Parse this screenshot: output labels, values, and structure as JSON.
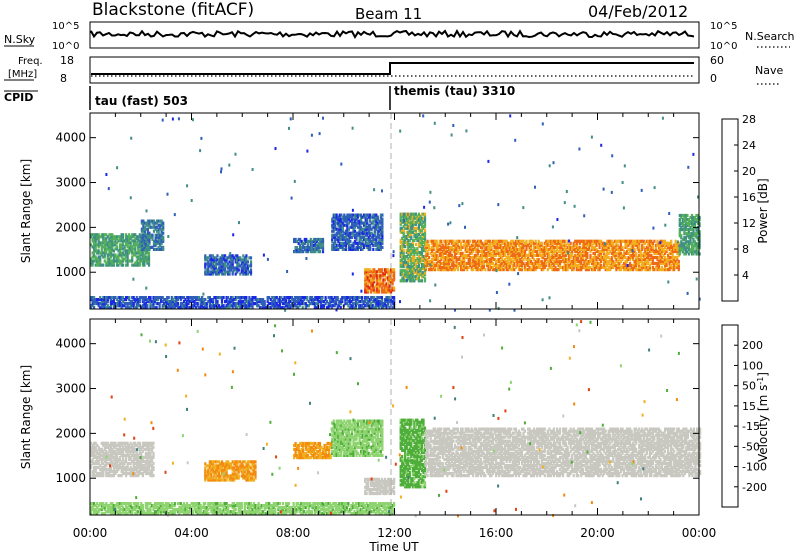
{
  "header": {
    "station": "Blackstone",
    "mode": "(fitACF)",
    "beam": "Beam 11",
    "date": "04/Feb/2012"
  },
  "status_panels": {
    "nsky_label": "N.Sky",
    "nsky_ticks": [
      "10^5",
      "10^0"
    ],
    "nsearch_label": "N.Search",
    "nsearch_ticks": [
      "10^5",
      "10^0"
    ],
    "freq_label_1": "Freq.",
    "freq_label_2": "[MHz]",
    "freq_ticks": [
      "18",
      "8"
    ],
    "nave_label": "Nave",
    "nave_ticks": [
      "60",
      "0"
    ],
    "cpid_label": "CPID",
    "cpid_segments": [
      {
        "label": "tau (fast) 503",
        "start_hour": 0
      },
      {
        "label": "themis (tau) 3310",
        "start_hour": 12.0
      }
    ]
  },
  "chart_data": [
    {
      "type": "heatmap",
      "name": "power",
      "ylabel": "Slant Range [km]",
      "xlabel": "Time UT",
      "xlim": [
        0,
        24
      ],
      "ylim": [
        180,
        4550
      ],
      "x_ticks": [
        "00:00",
        "04:00",
        "08:00",
        "12:00",
        "16:00",
        "20:00",
        "00:00"
      ],
      "y_ticks": [
        1000,
        2000,
        3000,
        4000
      ],
      "colorbar_label": "Power [dB]",
      "colorbar_ticks": [
        "4",
        "8",
        "12",
        "16",
        "20",
        "24",
        "28"
      ],
      "colorbar_colors": [
        "#1a28e6",
        "#2f5fb8",
        "#3f8f86",
        "#55b05a",
        "#f2b020",
        "#ee6a14",
        "#dd2010"
      ],
      "bands": [
        {
          "t0": 0.0,
          "t1": 2.3,
          "r0": 1150,
          "r1": 1850,
          "value": 12
        },
        {
          "t0": 2.0,
          "t1": 2.9,
          "r0": 1500,
          "r1": 2150,
          "value": 8
        },
        {
          "t0": 4.5,
          "t1": 6.3,
          "r0": 950,
          "r1": 1400,
          "value": 6
        },
        {
          "t0": 8.0,
          "t1": 9.2,
          "r0": 1450,
          "r1": 1750,
          "value": 7
        },
        {
          "t0": 9.5,
          "t1": 11.5,
          "r0": 1500,
          "r1": 2300,
          "value": 6
        },
        {
          "t0": 10.8,
          "t1": 12.0,
          "r0": 550,
          "r1": 1050,
          "value": 22
        },
        {
          "t0": 12.2,
          "t1": 13.2,
          "r0": 800,
          "r1": 2300,
          "value": 14
        },
        {
          "t0": 13.2,
          "t1": 23.2,
          "r0": 1050,
          "r1": 1700,
          "value": 20
        },
        {
          "t0": 23.2,
          "t1": 24.0,
          "r0": 1400,
          "r1": 2300,
          "value": 12
        },
        {
          "t0": 0.0,
          "t1": 12.0,
          "r0": 200,
          "r1": 450,
          "value": 5
        }
      ]
    },
    {
      "type": "heatmap",
      "name": "velocity",
      "ylabel": "Slant Range [km]",
      "xlabel": "Time UT",
      "xlim": [
        0,
        24
      ],
      "ylim": [
        180,
        4550
      ],
      "x_ticks": [
        "00:00",
        "04:00",
        "08:00",
        "12:00",
        "16:00",
        "20:00",
        "00:00"
      ],
      "y_ticks": [
        1000,
        2000,
        3000,
        4000
      ],
      "colorbar_label": "Velocity [m s-1]",
      "colorbar_ticks": [
        "200",
        "100",
        "50",
        "15",
        "-15",
        "-50",
        "-100",
        "-200"
      ],
      "colorbar_colors": [
        "#1c2fb0",
        "#3d7f7a",
        "#4fae3b",
        "#8fd470",
        "#c8c8c0",
        "#f0b020",
        "#f28a10",
        "#e24010",
        "#dd1010"
      ],
      "bands": [
        {
          "t0": 0.0,
          "t1": 2.5,
          "r0": 1050,
          "r1": 1800,
          "value": 0
        },
        {
          "t0": 4.5,
          "t1": 6.5,
          "r0": 950,
          "r1": 1400,
          "value": -50
        },
        {
          "t0": 8.0,
          "t1": 9.5,
          "r0": 1450,
          "r1": 1800,
          "value": -50
        },
        {
          "t0": 9.5,
          "t1": 11.5,
          "r0": 1500,
          "r1": 2300,
          "value": 40
        },
        {
          "t0": 10.8,
          "t1": 12.0,
          "r0": 650,
          "r1": 1000,
          "value": 0
        },
        {
          "t0": 12.2,
          "t1": 13.2,
          "r0": 800,
          "r1": 2300,
          "value": 60
        },
        {
          "t0": 13.2,
          "t1": 24.0,
          "r0": 1050,
          "r1": 2100,
          "value": 0
        },
        {
          "t0": 0.0,
          "t1": 12.0,
          "r0": 200,
          "r1": 450,
          "value": 40
        }
      ]
    }
  ]
}
